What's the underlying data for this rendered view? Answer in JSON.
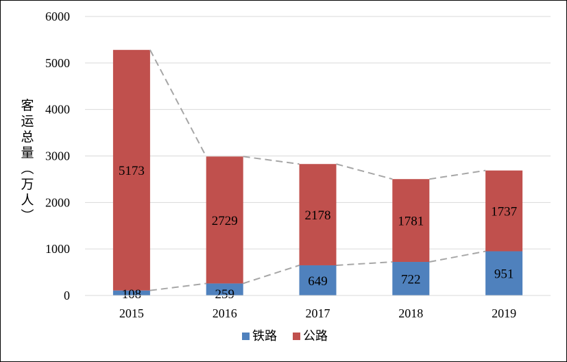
{
  "chart_data": {
    "type": "bar",
    "stacked": true,
    "categories": [
      "2015",
      "2016",
      "2017",
      "2018",
      "2019"
    ],
    "series": [
      {
        "name": "铁路",
        "values": [
          108,
          259,
          649,
          722,
          951
        ],
        "color": "#4f81bd"
      },
      {
        "name": "公路",
        "values": [
          5173,
          2729,
          2178,
          1781,
          1737
        ],
        "color": "#c0504d"
      }
    ],
    "trend_lines": {
      "style": "dashed",
      "color": "#a6a6a6"
    },
    "title": "",
    "xlabel": "",
    "ylabel": "客运总量（万人）",
    "ylim": [
      0,
      6000
    ],
    "yticks": [
      0,
      1000,
      2000,
      3000,
      4000,
      5000,
      6000
    ],
    "grid": true,
    "legend_position": "bottom"
  }
}
